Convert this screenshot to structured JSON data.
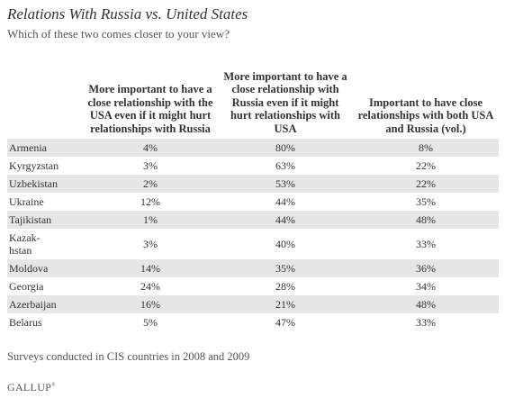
{
  "title": "Relations With Russia vs. United States",
  "subtitle": "Which of these two comes closer to your view?",
  "footnote": "Surveys conducted in CIS countries in 2008 and 2009",
  "logo": "GALLUP",
  "chart_data": {
    "type": "table",
    "columns": [
      "",
      "More important to have a close relationship with the USA even if it might hurt relationships with Russia",
      "More important to have a close relationship with Russia even if it might hurt relationships with USA",
      "Important to have close relationships with both USA and Russia (vol.)"
    ],
    "rows": [
      {
        "country": "Armenia",
        "values": [
          "4%",
          "80%",
          "8%"
        ]
      },
      {
        "country": "Kyrgyzstan",
        "values": [
          "3%",
          "63%",
          "22%"
        ]
      },
      {
        "country": "Uzbekistan",
        "values": [
          "2%",
          "53%",
          "22%"
        ]
      },
      {
        "country": "Ukraine",
        "values": [
          "12%",
          "44%",
          "35%"
        ]
      },
      {
        "country": "Tajikistan",
        "values": [
          "1%",
          "44%",
          "48%"
        ]
      },
      {
        "country": "Kazak-hstan",
        "values": [
          "3%",
          "40%",
          "33%"
        ]
      },
      {
        "country": "Moldova",
        "values": [
          "14%",
          "35%",
          "36%"
        ]
      },
      {
        "country": "Georgia",
        "values": [
          "24%",
          "28%",
          "34%"
        ]
      },
      {
        "country": "Azerbaijan",
        "values": [
          "16%",
          "21%",
          "48%"
        ]
      },
      {
        "country": "Belarus",
        "values": [
          "5%",
          "47%",
          "33%"
        ]
      }
    ]
  }
}
